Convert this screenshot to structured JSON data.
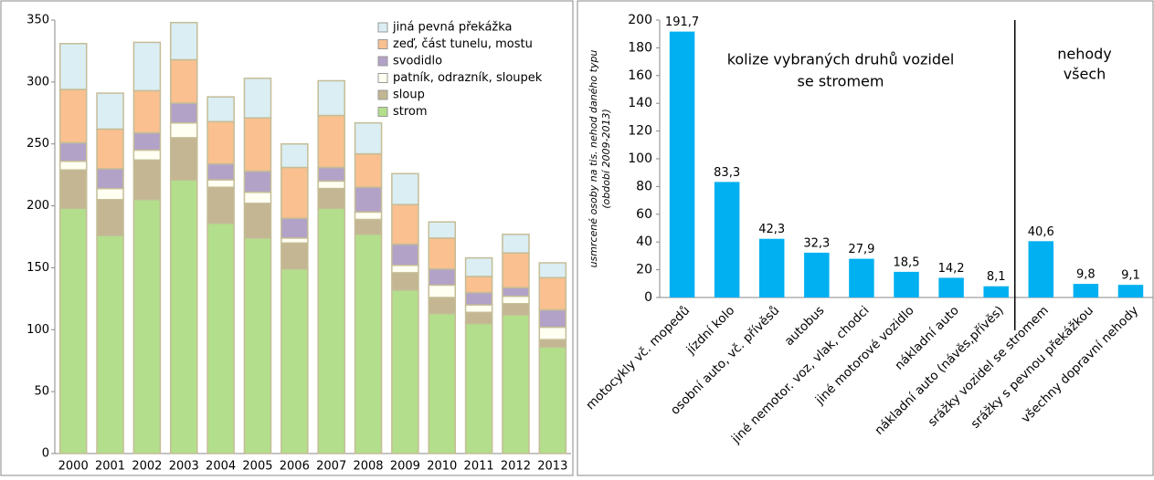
{
  "chart_data": [
    {
      "type": "stacked_bar",
      "categories": [
        "2000",
        "2001",
        "2002",
        "2003",
        "2004",
        "2005",
        "2006",
        "2007",
        "2008",
        "2009",
        "2010",
        "2011",
        "2012",
        "2013"
      ],
      "series": [
        {
          "name": "strom",
          "color": "#b3de8c",
          "values": [
            198,
            176,
            205,
            221,
            186,
            174,
            149,
            198,
            177,
            132,
            113,
            105,
            112,
            86
          ]
        },
        {
          "name": "sloup",
          "color": "#c4b593",
          "values": [
            31,
            29,
            32,
            34,
            29,
            28,
            21,
            16,
            12,
            14,
            13,
            9,
            9,
            6
          ]
        },
        {
          "name": "patník, odrazník, sloupek",
          "color": "#fffff2",
          "values": [
            7,
            9,
            8,
            12,
            6,
            9,
            4,
            6,
            6,
            6,
            10,
            6,
            6,
            10
          ]
        },
        {
          "name": "svodidlo",
          "color": "#b3a2c7",
          "values": [
            15,
            16,
            14,
            16,
            13,
            17,
            16,
            11,
            20,
            17,
            13,
            10,
            7,
            14
          ]
        },
        {
          "name": "zeď, část tunelu, mostu",
          "color": "#fac090",
          "values": [
            43,
            32,
            34,
            35,
            34,
            43,
            41,
            42,
            27,
            32,
            25,
            13,
            28,
            26
          ]
        },
        {
          "name": "jiná pevná překážka",
          "color": "#dbeef4",
          "values": [
            37,
            29,
            39,
            30,
            20,
            32,
            19,
            28,
            25,
            25,
            13,
            15,
            15,
            12
          ]
        }
      ],
      "ylim": [
        0,
        350
      ],
      "yticks": [
        0,
        50,
        100,
        150,
        200,
        250,
        300,
        350
      ]
    },
    {
      "type": "bar",
      "y_label": [
        "usmrcené osoby na tis. nehod daného typu",
        "(období 2009-2013)"
      ],
      "annotations": [
        "kolize vybraných druhů vozidel",
        "se stromem",
        "nehody",
        "všech"
      ],
      "categories": [
        "motocykly vč. mopedů",
        "jízdní kolo",
        "osobní auto, vč. přívěsů",
        "autobus",
        "jiné nemotor. voz, vlak, chodci",
        "jiné motorové vozidlo",
        "nákladní auto",
        "nákladní auto (návěs,přívěs)",
        "srážky vozidel se stromem",
        "srážky s pevnou překážkou",
        "všechny dopravní nehody"
      ],
      "values": [
        191.7,
        83.3,
        42.3,
        32.3,
        27.9,
        18.5,
        14.2,
        8.1,
        40.6,
        9.8,
        9.1
      ],
      "value_labels": [
        "191,7",
        "83,3",
        "42,3",
        "32,3",
        "27,9",
        "18,5",
        "14,2",
        "8,1",
        "40,6",
        "9,8",
        "9,1"
      ],
      "color": "#00b0f0",
      "ylim": [
        0,
        200
      ],
      "yticks": [
        0,
        20,
        40,
        60,
        80,
        100,
        120,
        140,
        160,
        180,
        200
      ]
    }
  ]
}
